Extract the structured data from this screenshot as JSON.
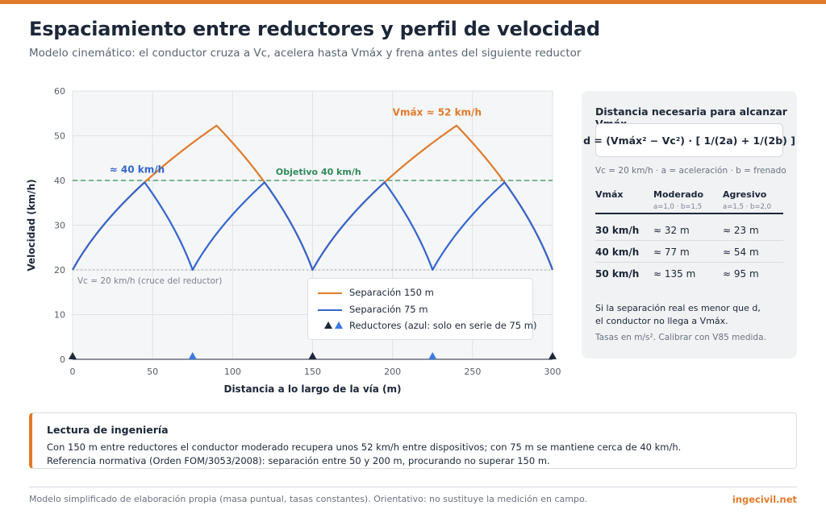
{
  "header": {
    "title": "Espaciamiento entre reductores y perfil de velocidad",
    "subtitle": "Modelo cinemático: el conductor cruza a Vc, acelera hasta Vmáx y frena antes del siguiente reductor"
  },
  "chart_data": {
    "type": "line",
    "xlabel": "Distancia a lo largo de la vía (m)",
    "ylabel": "Velocidad (km/h)",
    "xlim": [
      0,
      300
    ],
    "ylim": [
      0,
      60
    ],
    "xticks": [
      0,
      50,
      100,
      150,
      200,
      250,
      300
    ],
    "yticks": [
      0,
      10,
      20,
      30,
      40,
      50,
      60
    ],
    "grid": true,
    "model": {
      "vc_kmh": 20,
      "accel_ms2": 1.0,
      "brake_ms2": 1.5
    },
    "series": [
      {
        "name": "Separación 150 m",
        "color": "#e07b2a",
        "spacing_m": 150,
        "peak_kmh": 52.3
      },
      {
        "name": "Separación 75 m",
        "color": "#3366cc",
        "spacing_m": 75,
        "peak_kmh": 39.7
      }
    ],
    "reference_lines": [
      {
        "y": 40,
        "label": "Objetivo 40 km/h",
        "color": "#2e8b57",
        "style": "dashed"
      },
      {
        "y": 20,
        "label": "Vc = 20 km/h (cruce del reductor)",
        "color": "#9aa1ab",
        "style": "dotted"
      }
    ],
    "annotations": [
      {
        "text": "Vmáx ≈ 52 km/h",
        "color": "#e07b2a"
      },
      {
        "text": "≈ 40 km/h",
        "color": "#3366cc"
      }
    ],
    "markers": [
      {
        "x": 0,
        "kind": "both"
      },
      {
        "x": 75,
        "kind": "blue"
      },
      {
        "x": 150,
        "kind": "both"
      },
      {
        "x": 225,
        "kind": "blue"
      },
      {
        "x": 300,
        "kind": "both"
      }
    ],
    "legend": {
      "position": "bottom-right",
      "items": [
        "Separación 150 m",
        "Separación 75 m",
        "Reductores (azul: solo en serie de 75 m)"
      ]
    }
  },
  "panel": {
    "title": "Distancia necesaria para alcanzar Vmáx",
    "formula": "d = (Vmáx² − Vc²) · [ 1/(2a) + 1/(2b) ]",
    "formula_note": "Vc = 20 km/h · a = aceleración · b = frenado",
    "table": {
      "headers": [
        "Vmáx",
        "Moderado",
        "Agresivo"
      ],
      "subheaders": [
        "",
        "a=1,0 · b=1,5",
        "a=1,5 · b=2,0"
      ],
      "rows": [
        [
          "30 km/h",
          "≈ 32 m",
          "≈ 23 m"
        ],
        [
          "40 km/h",
          "≈ 77 m",
          "≈ 54 m"
        ],
        [
          "50 km/h",
          "≈ 135 m",
          "≈ 95 m"
        ]
      ]
    },
    "note_line1": "Si la separación real es menor que d,",
    "note_line2": "el conductor no llega a Vmáx.",
    "note2": "Tasas en m/s². Calibrar con V85 medida."
  },
  "engineering": {
    "title": "Lectura de ingeniería",
    "line1": "Con 150 m entre reductores el conductor moderado recupera unos 52 km/h entre dispositivos; con 75 m se mantiene cerca de 40 km/h.",
    "line2": "Referencia normativa (Orden FOM/3053/2008): separación entre 50 y 200 m, procurando no superar 150 m."
  },
  "footer": {
    "text": "Modelo simplificado de elaboración propia (masa puntual, tasas constantes). Orientativo: no sustituye la medición en campo.",
    "brand": "ingecivil.net"
  }
}
